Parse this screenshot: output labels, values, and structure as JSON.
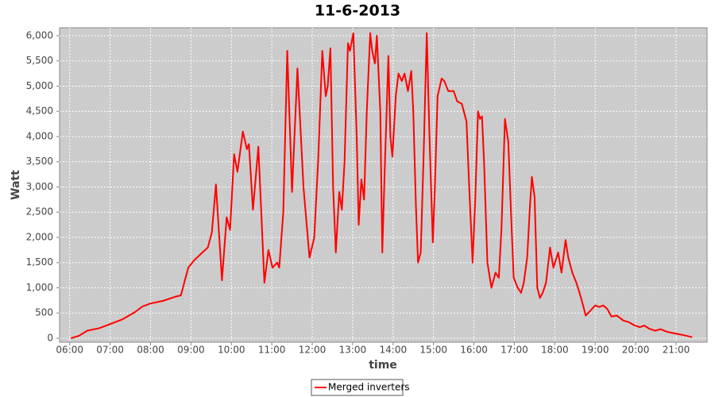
{
  "chart_data": {
    "type": "line",
    "title": "11-6-2013",
    "x_label": "time",
    "y_label": "Watt",
    "x": [
      "06:02",
      "06:14",
      "06:26",
      "06:44",
      "07:00",
      "07:19",
      "07:37",
      "07:48",
      "08:00",
      "08:18",
      "08:36",
      "08:45",
      "08:50",
      "08:56",
      "09:05",
      "09:17",
      "09:25",
      "09:31",
      "09:37",
      "09:42",
      "09:46",
      "09:53",
      "09:58",
      "10:04",
      "10:09",
      "10:17",
      "10:23",
      "10:26",
      "10:32",
      "10:40",
      "10:49",
      "10:55",
      "11:01",
      "11:08",
      "11:11",
      "11:17",
      "11:23",
      "11:30",
      "11:38",
      "11:47",
      "11:56",
      "12:03",
      "12:09",
      "12:15",
      "12:20",
      "12:23",
      "12:27",
      "12:31",
      "12:35",
      "12:40",
      "12:44",
      "12:48",
      "12:53",
      "12:56",
      "13:01",
      "13:06",
      "13:09",
      "13:13",
      "13:17",
      "13:21",
      "13:26",
      "13:29",
      "13:33",
      "13:36",
      "13:41",
      "13:44",
      "13:48",
      "13:53",
      "13:56",
      "13:59",
      "14:04",
      "14:08",
      "14:13",
      "14:17",
      "14:22",
      "14:27",
      "14:30",
      "14:34",
      "14:37",
      "14:41",
      "14:45",
      "14:50",
      "14:54",
      "14:59",
      "15:02",
      "15:06",
      "15:12",
      "15:16",
      "15:22",
      "15:30",
      "15:35",
      "15:42",
      "15:49",
      "15:53",
      "15:58",
      "16:02",
      "16:06",
      "16:09",
      "16:12",
      "16:15",
      "16:20",
      "16:26",
      "16:32",
      "16:37",
      "16:41",
      "16:46",
      "16:51",
      "16:55",
      "16:59",
      "17:05",
      "17:10",
      "17:14",
      "17:19",
      "17:23",
      "17:26",
      "17:30",
      "17:34",
      "17:38",
      "17:42",
      "17:47",
      "17:53",
      "17:58",
      "18:05",
      "18:10",
      "18:16",
      "18:20",
      "18:26",
      "18:32",
      "18:39",
      "18:46",
      "18:53",
      "19:00",
      "19:06",
      "19:12",
      "19:18",
      "19:24",
      "19:32",
      "19:42",
      "19:50",
      "19:59",
      "20:06",
      "20:13",
      "20:20",
      "20:29",
      "20:37",
      "20:46",
      "20:56",
      "21:04",
      "21:12",
      "21:24"
    ],
    "series": [
      {
        "name": "Merged inverters",
        "color": "#ff0000",
        "values": [
          0,
          50,
          150,
          200,
          280,
          380,
          520,
          630,
          690,
          740,
          820,
          850,
          1100,
          1400,
          1550,
          1700,
          1800,
          2100,
          3050,
          2000,
          1150,
          2400,
          2150,
          3650,
          3300,
          4100,
          3750,
          3850,
          2550,
          3800,
          1100,
          1750,
          1400,
          1500,
          1400,
          2500,
          5700,
          2900,
          5350,
          3000,
          1600,
          2000,
          3600,
          5700,
          4800,
          5000,
          5750,
          3000,
          1700,
          2900,
          2550,
          3500,
          5850,
          5700,
          6050,
          4000,
          2250,
          3150,
          2750,
          4500,
          6050,
          5700,
          5450,
          6000,
          4500,
          1700,
          3500,
          5600,
          4000,
          3600,
          4800,
          5250,
          5100,
          5250,
          4900,
          5300,
          4500,
          2600,
          1500,
          1700,
          3500,
          6050,
          4000,
          1900,
          3000,
          4800,
          5150,
          5100,
          4900,
          4900,
          4700,
          4650,
          4300,
          3000,
          1500,
          2800,
          4500,
          4350,
          4400,
          3500,
          1500,
          1000,
          1300,
          1200,
          2200,
          4350,
          3900,
          2500,
          1200,
          1000,
          900,
          1100,
          1600,
          2600,
          3200,
          2800,
          1000,
          800,
          900,
          1100,
          1800,
          1400,
          1700,
          1300,
          1950,
          1600,
          1300,
          1100,
          800,
          450,
          550,
          650,
          620,
          650,
          580,
          430,
          450,
          350,
          320,
          250,
          220,
          250,
          190,
          150,
          180,
          130,
          100,
          80,
          60,
          20
        ]
      }
    ],
    "xlim": [
      "05:45",
      "21:46"
    ],
    "xticks": [
      "06:00",
      "07:00",
      "08:00",
      "09:00",
      "10:00",
      "11:00",
      "12:00",
      "13:00",
      "14:00",
      "15:00",
      "16:00",
      "17:00",
      "18:00",
      "19:00",
      "20:00",
      "21:00"
    ],
    "ylim": [
      -79,
      6157
    ],
    "yticks": [
      0,
      500,
      {
        "value": 1000,
        "label": "1,000"
      },
      {
        "value": 1500,
        "label": "1,500"
      },
      {
        "value": 2000,
        "label": "2,000"
      },
      {
        "value": 2500,
        "label": "2,500"
      },
      {
        "value": 3000,
        "label": "3,000"
      },
      {
        "value": 3500,
        "label": "3,500"
      },
      {
        "value": 4000,
        "label": "4,000"
      },
      {
        "value": 4500,
        "label": "4,500"
      },
      {
        "value": 5000,
        "label": "5,000"
      },
      {
        "value": 5500,
        "label": "5,500"
      },
      {
        "value": 6000,
        "label": "6,000"
      }
    ],
    "grid": true,
    "legend": "bottom"
  }
}
